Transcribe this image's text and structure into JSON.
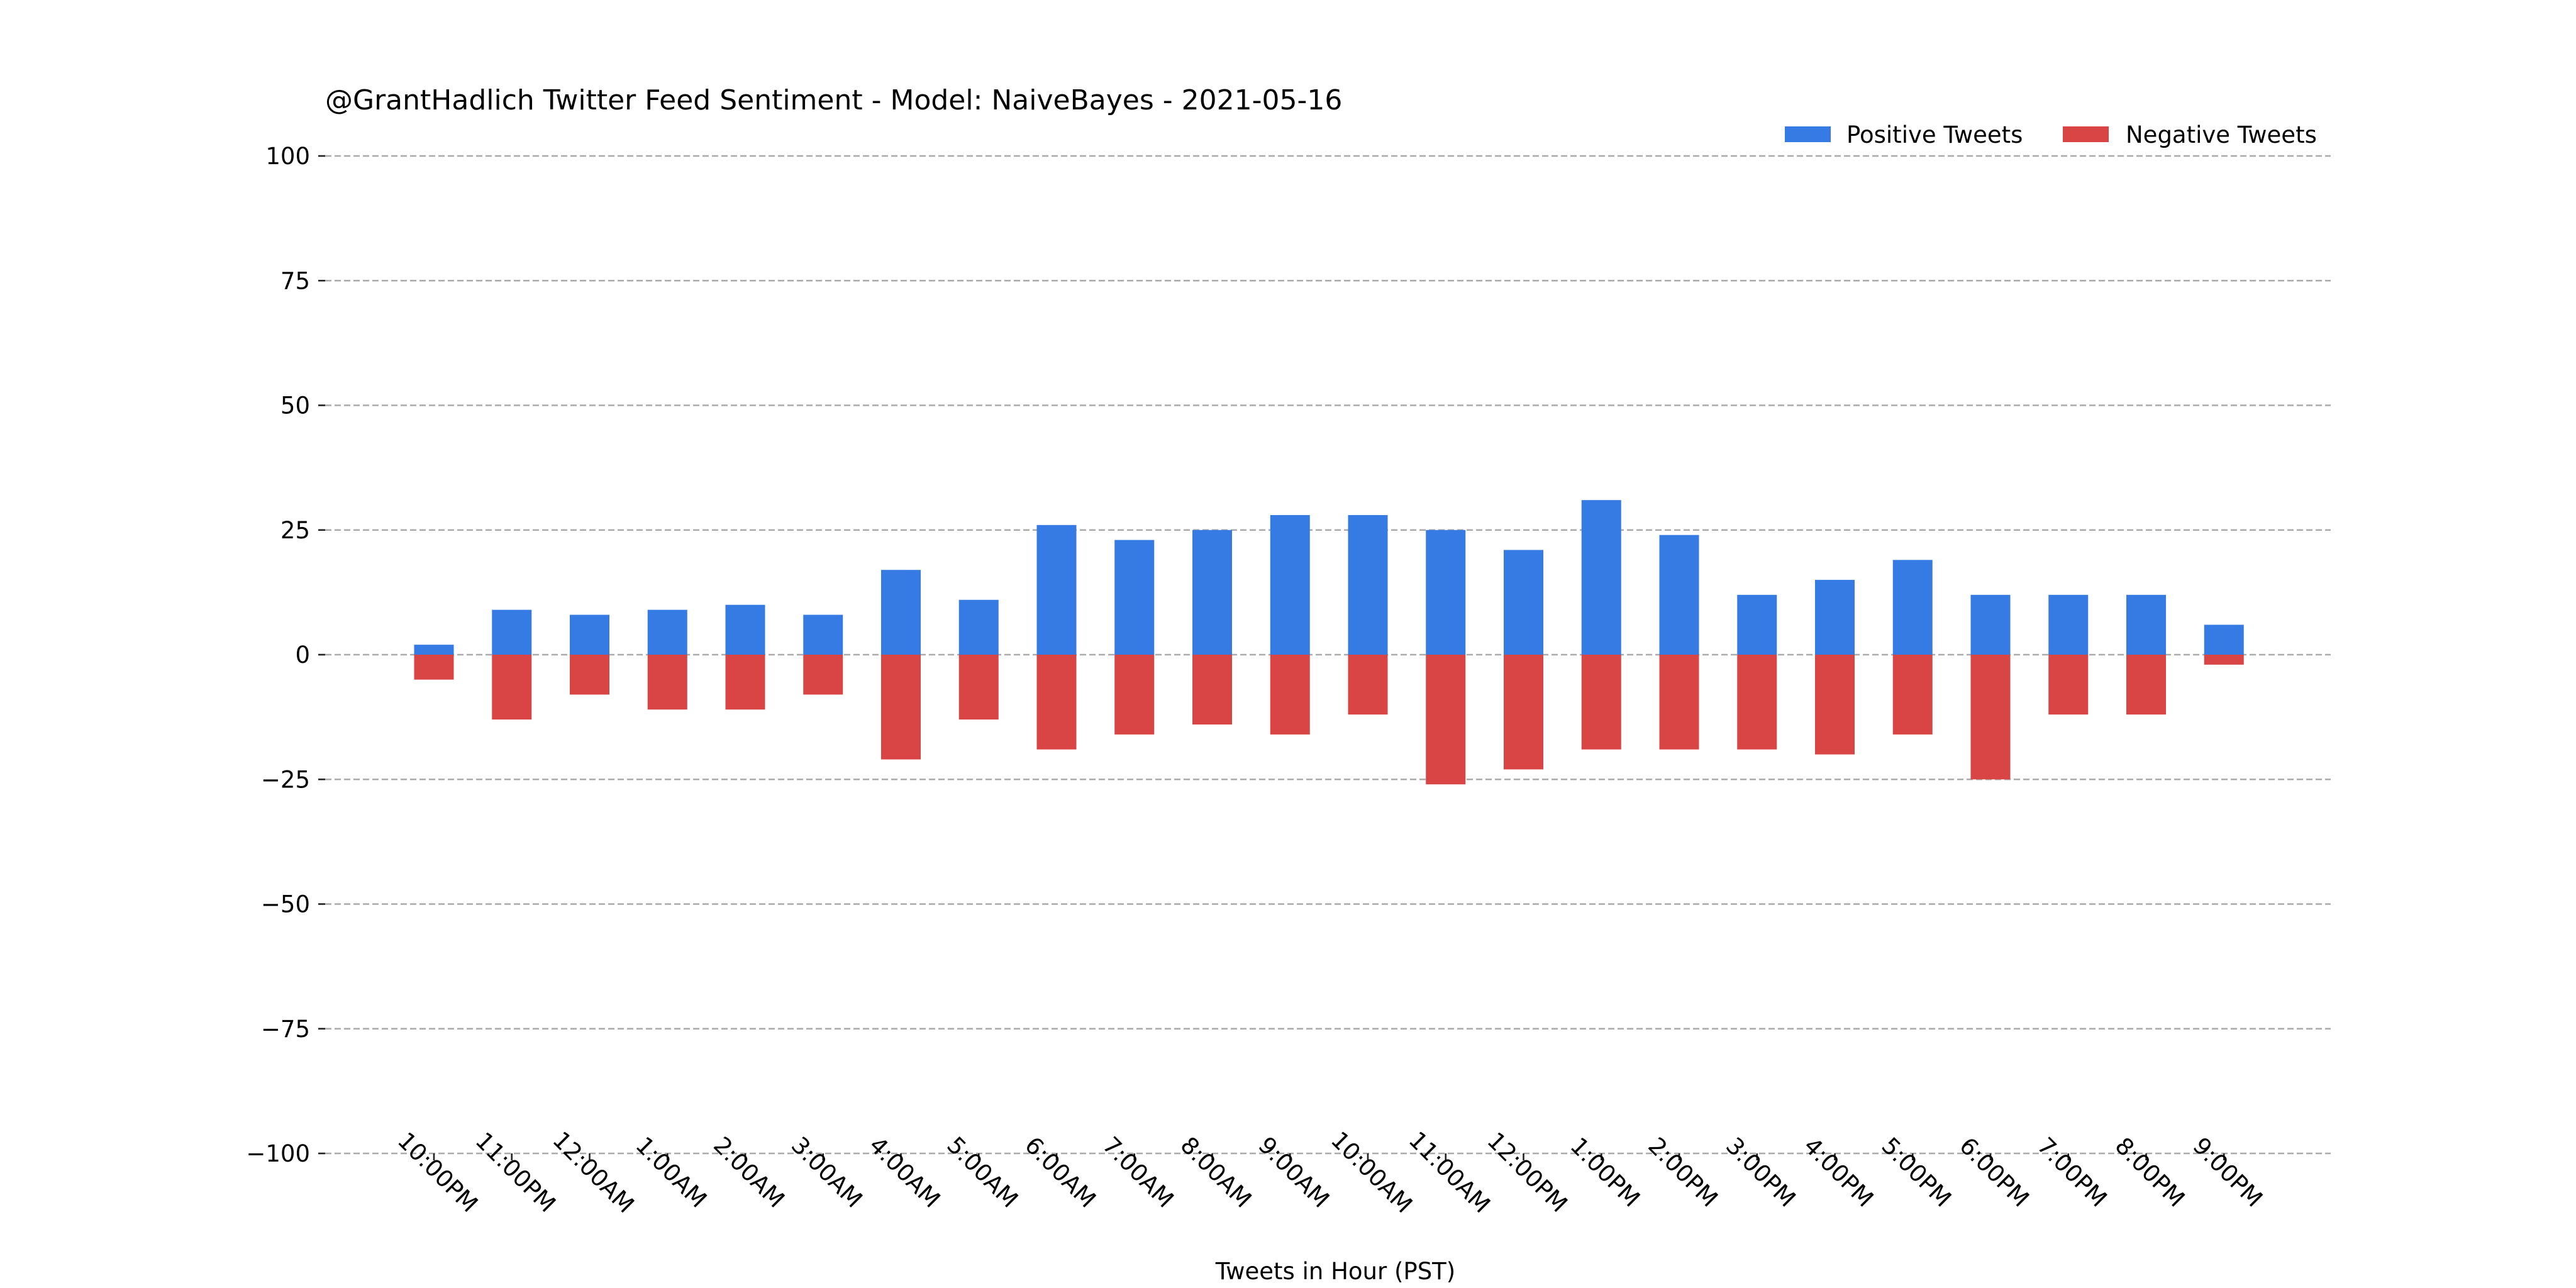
{
  "chart_data": {
    "type": "bar",
    "title": "@GrantHadlich Twitter Feed Sentiment - Model: NaiveBayes - 2021-05-16",
    "xlabel": "Tweets in Hour (PST)",
    "ylabel": "",
    "ylim": [
      -100,
      100
    ],
    "yticks": [
      100,
      75,
      50,
      25,
      0,
      -25,
      -50,
      -75,
      -100
    ],
    "ytick_labels": [
      "100",
      "75",
      "50",
      "25",
      "0",
      "−25",
      "−50",
      "−75",
      "−100"
    ],
    "grid": true,
    "legend_position": "top-right",
    "stacked": "diverging",
    "categories": [
      "10:00PM",
      "11:00PM",
      "12:00AM",
      "1:00AM",
      "2:00AM",
      "3:00AM",
      "4:00AM",
      "5:00AM",
      "6:00AM",
      "7:00AM",
      "8:00AM",
      "9:00AM",
      "10:00AM",
      "11:00AM",
      "12:00PM",
      "1:00PM",
      "2:00PM",
      "3:00PM",
      "4:00PM",
      "5:00PM",
      "6:00PM",
      "7:00PM",
      "8:00PM",
      "9:00PM"
    ],
    "series": [
      {
        "name": "Positive Tweets",
        "color": "#367be3",
        "values": [
          2,
          9,
          8,
          9,
          10,
          8,
          17,
          11,
          26,
          23,
          25,
          28,
          28,
          25,
          21,
          31,
          24,
          12,
          15,
          19,
          12,
          12,
          12,
          6
        ]
      },
      {
        "name": "Negative Tweets",
        "color": "#d94545",
        "values": [
          -5,
          -13,
          -8,
          -11,
          -11,
          -8,
          -21,
          -13,
          -19,
          -16,
          -14,
          -16,
          -12,
          -26,
          -23,
          -19,
          -19,
          -19,
          -20,
          -16,
          -25,
          -12,
          -12,
          -2
        ]
      }
    ]
  }
}
